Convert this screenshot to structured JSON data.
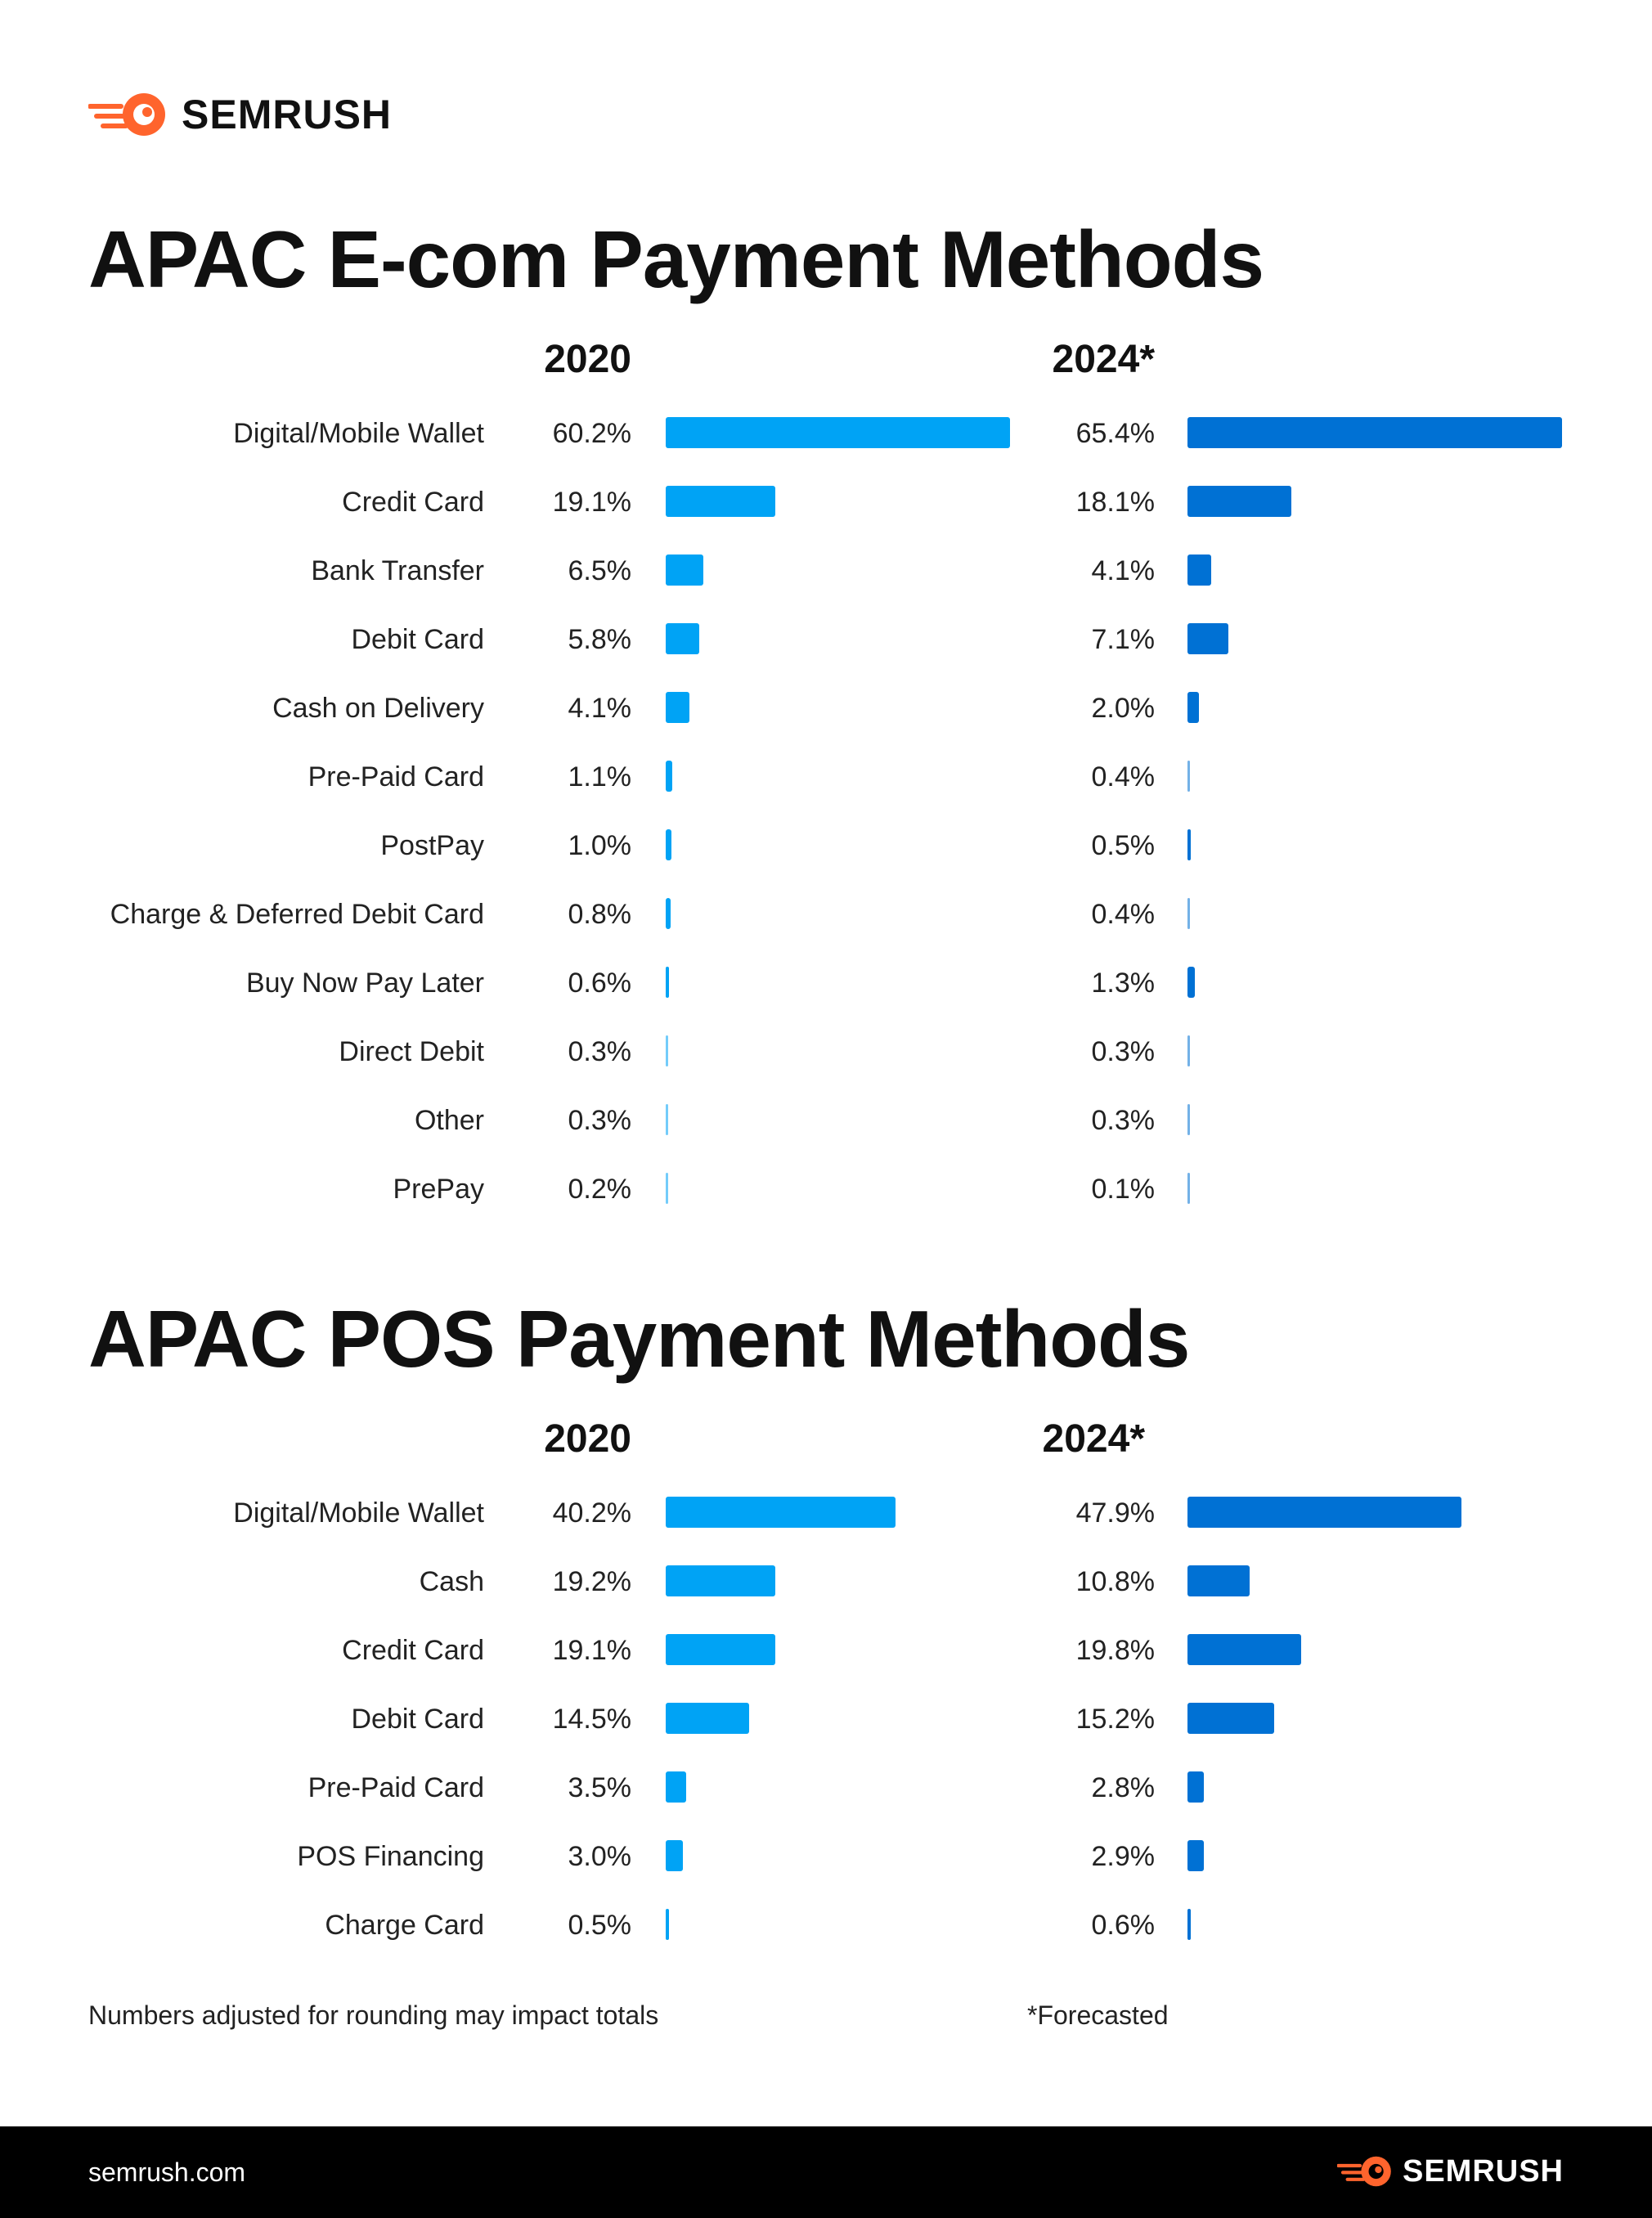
{
  "brand": {
    "name": "SEMRUSH",
    "accent": "#ff642d",
    "site": "semrush.com"
  },
  "colors": {
    "series_2020": "#00a3f5",
    "series_2024": "#0071d4"
  },
  "chart_data": [
    {
      "type": "bar",
      "orientation": "horizontal",
      "title": "APAC E-com Payment Methods",
      "series_labels": [
        "2020",
        "2024*"
      ],
      "categories": [
        "Digital/Mobile Wallet",
        "Credit Card",
        "Bank Transfer",
        "Debit Card",
        "Cash on Delivery",
        "Pre-Paid Card",
        "PostPay",
        "Charge & Deferred Debit Card",
        "Buy Now Pay Later",
        "Direct Debit",
        "Other",
        "PrePay"
      ],
      "series": [
        {
          "values": [
            60.2,
            19.1,
            6.5,
            5.8,
            4.1,
            1.1,
            1.0,
            0.8,
            0.6,
            0.3,
            0.3,
            0.2
          ],
          "labels": [
            "60.2%",
            "19.1%",
            "6.5%",
            "5.8%",
            "4.1%",
            "1.1%",
            "1.0%",
            "0.8%",
            "0.6%",
            "0.3%",
            "0.3%",
            "0.2%"
          ]
        },
        {
          "values": [
            65.4,
            18.1,
            4.1,
            7.1,
            2.0,
            0.4,
            0.5,
            0.4,
            1.3,
            0.3,
            0.3,
            0.1
          ],
          "labels": [
            "65.4%",
            "18.1%",
            "4.1%",
            "7.1%",
            "2.0%",
            "0.4%",
            "0.5%",
            "0.4%",
            "1.3%",
            "0.3%",
            "0.3%",
            "0.1%"
          ]
        }
      ]
    },
    {
      "type": "bar",
      "orientation": "horizontal",
      "title": "APAC POS Payment Methods",
      "series_labels": [
        "2020",
        "2024*"
      ],
      "categories": [
        "Digital/Mobile Wallet",
        "Cash",
        "Credit Card",
        "Debit Card",
        "Pre-Paid Card",
        "POS Financing",
        "Charge Card"
      ],
      "series": [
        {
          "values": [
            40.2,
            19.2,
            19.1,
            14.5,
            3.5,
            3.0,
            0.5
          ],
          "labels": [
            "40.2%",
            "19.2%",
            "19.1%",
            "14.5%",
            "3.5%",
            "3.0%",
            "0.5%"
          ]
        },
        {
          "values": [
            47.9,
            10.8,
            19.8,
            15.2,
            2.8,
            2.9,
            0.6
          ],
          "labels": [
            "47.9%",
            "10.8%",
            "19.8%",
            "15.2%",
            "2.8%",
            "2.9%",
            "0.6%"
          ]
        }
      ]
    }
  ],
  "notes": {
    "rounding": "Numbers adjusted for rounding may impact totals",
    "forecast": "*Forecasted"
  }
}
